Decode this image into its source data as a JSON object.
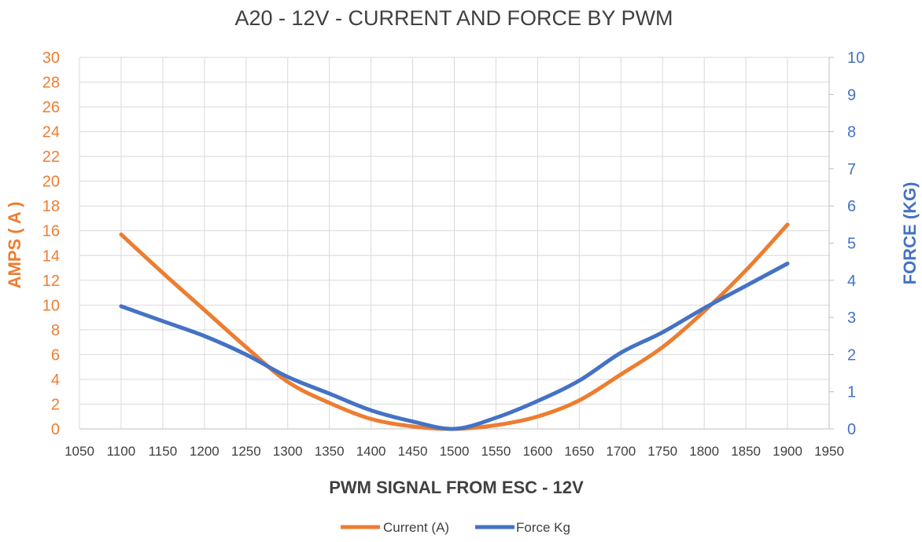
{
  "chart_data": {
    "type": "line",
    "title": "A20 - 12V - CURRENT AND FORCE BY PWM",
    "xlabel": "PWM SIGNAL FROM ESC - 12V",
    "ylabel_left": "AMPS ( A )",
    "ylabel_right": "FORCE (KG)",
    "xlim": [
      1050,
      1950
    ],
    "x_ticks": [
      1050,
      1100,
      1150,
      1200,
      1250,
      1300,
      1350,
      1400,
      1450,
      1500,
      1550,
      1600,
      1650,
      1700,
      1750,
      1800,
      1850,
      1900,
      1950
    ],
    "ylim_left": [
      0,
      30
    ],
    "y_ticks_left": [
      0,
      2,
      4,
      6,
      8,
      10,
      12,
      14,
      16,
      18,
      20,
      22,
      24,
      26,
      28,
      30
    ],
    "ylim_right": [
      0,
      10
    ],
    "y_ticks_right": [
      0,
      1,
      2,
      3,
      4,
      5,
      6,
      7,
      8,
      9,
      10
    ],
    "grid": true,
    "legend_position": "bottom",
    "series": [
      {
        "name": "Current (A)",
        "axis": "left",
        "color": "#ED7D31",
        "x": [
          1100,
          1150,
          1200,
          1250,
          1300,
          1350,
          1400,
          1450,
          1500,
          1550,
          1600,
          1650,
          1700,
          1750,
          1800,
          1850,
          1900
        ],
        "y": [
          15.7,
          12.6,
          9.6,
          6.6,
          3.8,
          2.1,
          0.8,
          0.2,
          0.0,
          0.3,
          1.0,
          2.3,
          4.4,
          6.6,
          9.5,
          12.8,
          16.5
        ]
      },
      {
        "name": "Force Kg",
        "axis": "right",
        "color": "#4472C4",
        "x": [
          1100,
          1150,
          1200,
          1250,
          1300,
          1350,
          1400,
          1450,
          1500,
          1550,
          1600,
          1650,
          1700,
          1750,
          1800,
          1850,
          1900
        ],
        "y": [
          3.3,
          2.9,
          2.5,
          2.0,
          1.4,
          0.95,
          0.5,
          0.2,
          0.0,
          0.3,
          0.75,
          1.3,
          2.05,
          2.6,
          3.25,
          3.85,
          4.45
        ]
      }
    ]
  }
}
